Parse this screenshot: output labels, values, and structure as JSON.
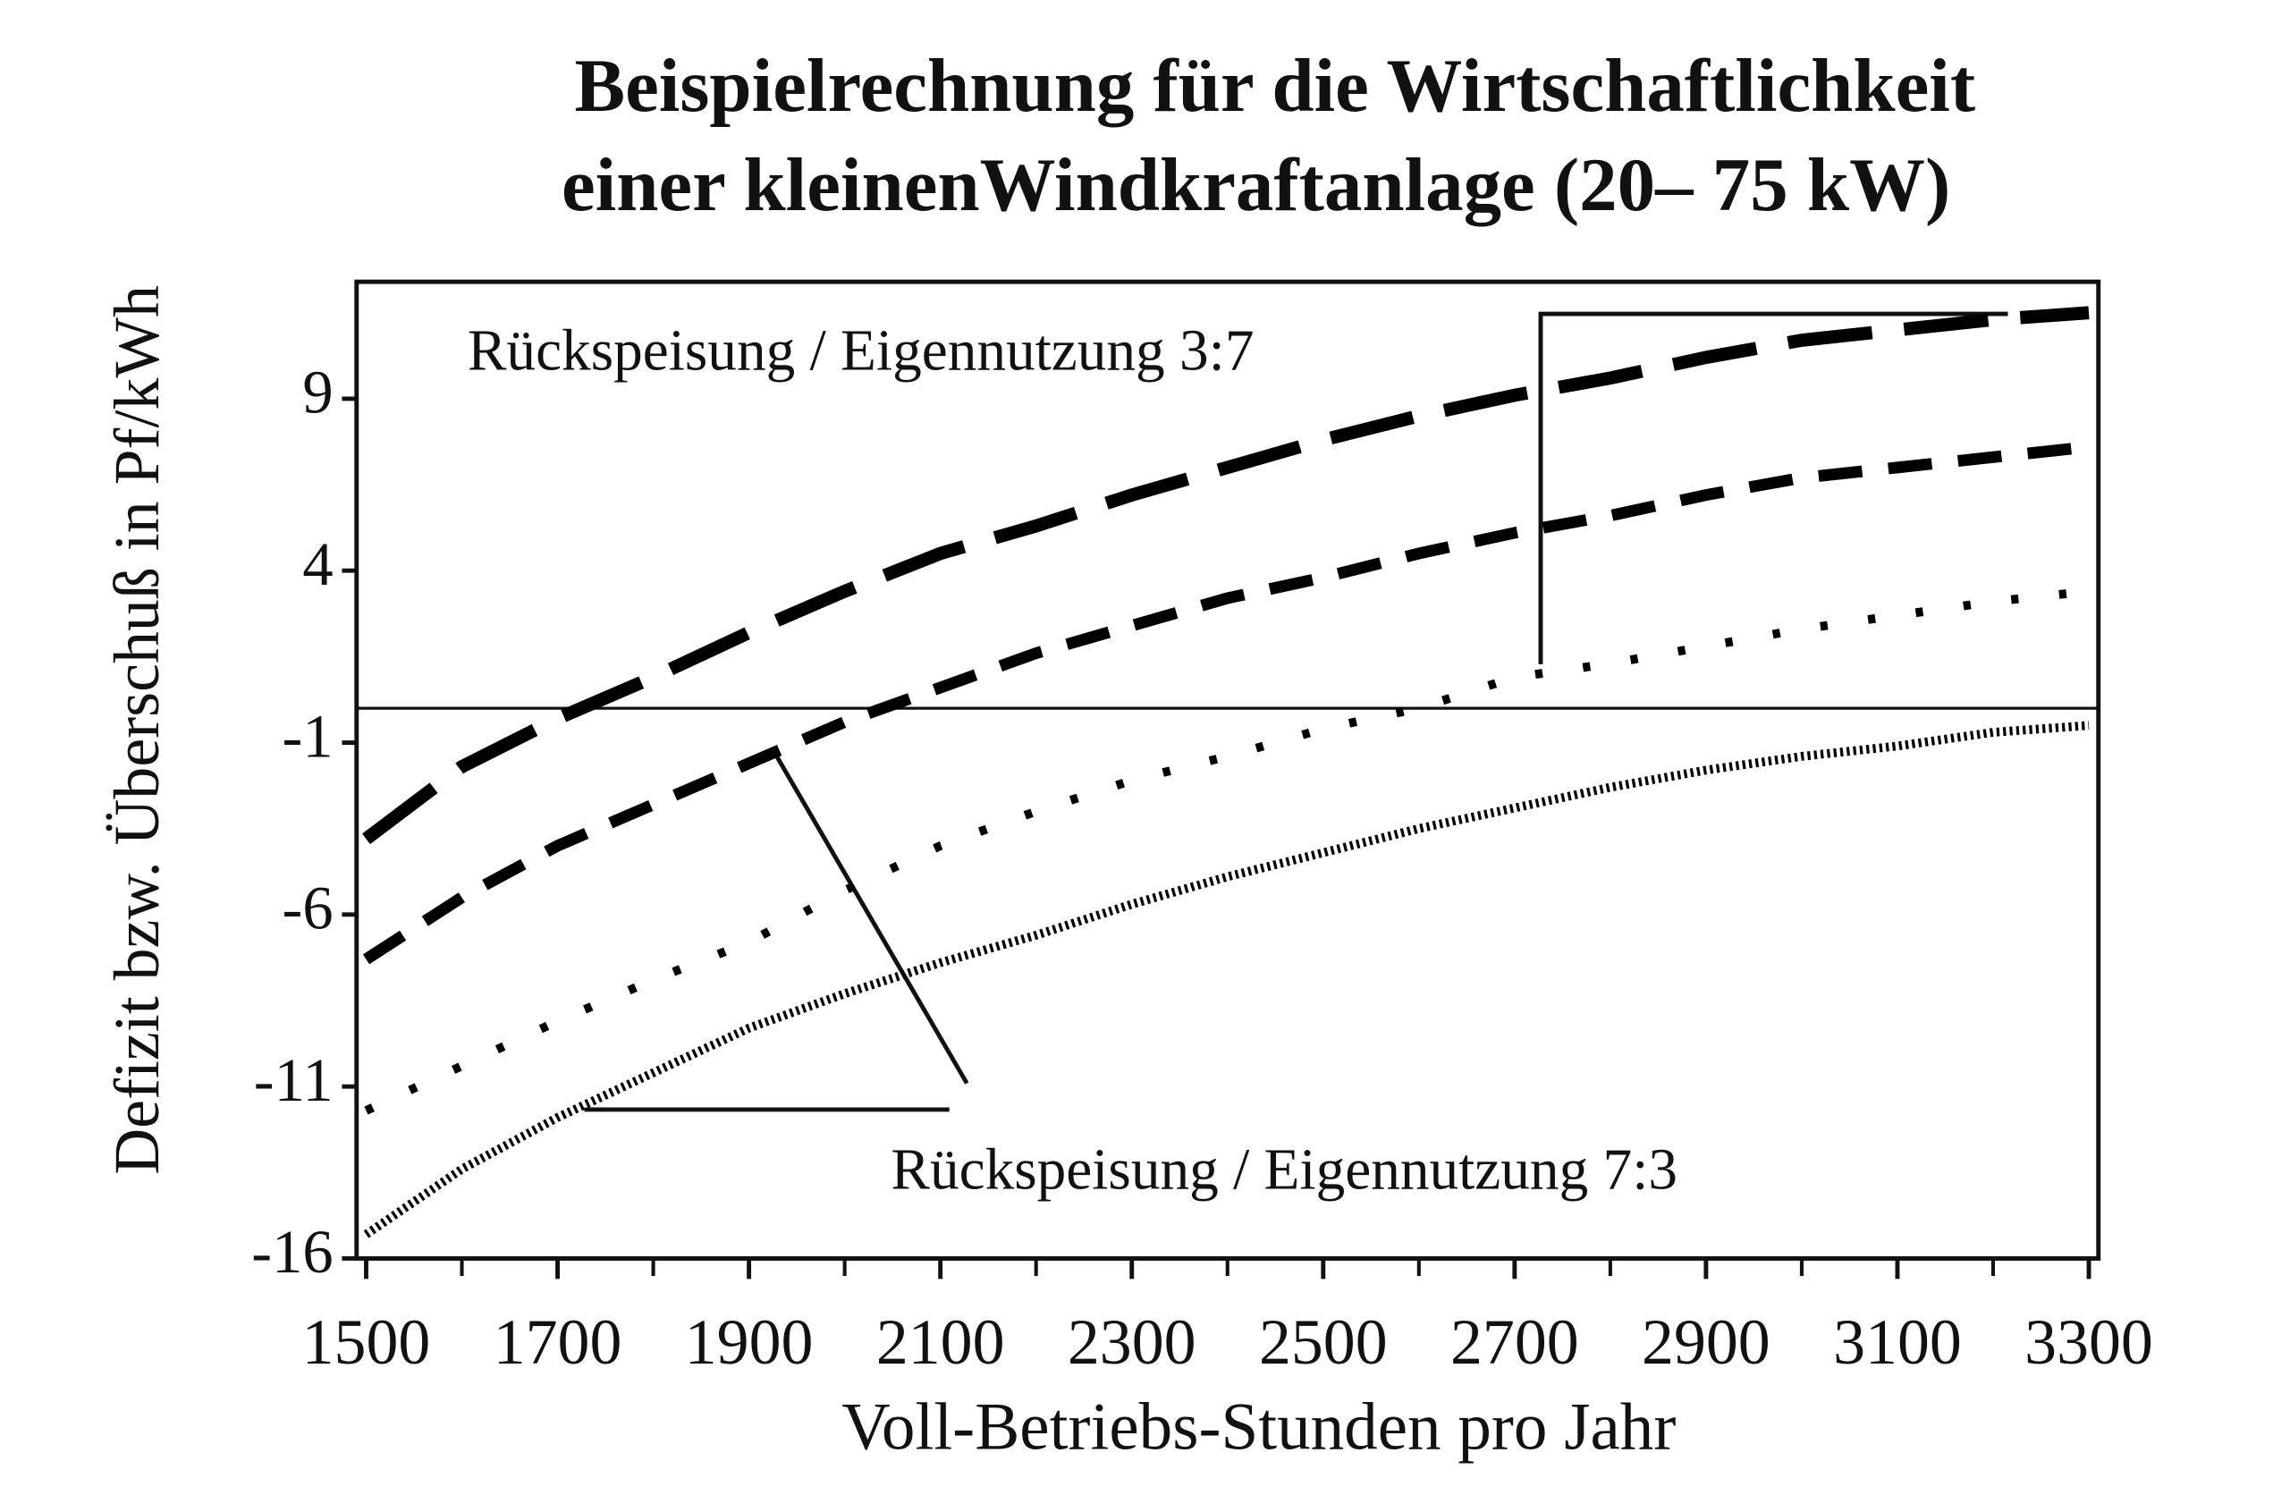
{
  "chart_data": {
    "type": "line",
    "title": [
      "Beispielrechnung für die Wirtschaftlichkeit",
      "einer kleinenWindkraftanlage (20– 75 kW)"
    ],
    "x_label": "Voll-Betriebs-Stunden pro Jahr",
    "y_label": "Defizit bzw. Überschuß in Pf/kWh",
    "annotations": [
      "Rückspeisung / Eigennutzung 3:7",
      "Rückspeisung / Eigennutzung 7:3"
    ],
    "x": [
      1500,
      1600,
      1700,
      1800,
      1900,
      2000,
      2100,
      2200,
      2300,
      2400,
      2500,
      2600,
      2700,
      2800,
      2900,
      3000,
      3100,
      3200,
      3300
    ],
    "series": [
      {
        "color": "#000000",
        "style": "long-dash",
        "values": [
          -3.8,
          -1.7,
          -0.3,
          0.9,
          2.2,
          3.4,
          4.5,
          5.3,
          6.2,
          7.0,
          7.8,
          8.5,
          9.1,
          9.6,
          10.2,
          10.7,
          11.0,
          11.3,
          11.5
        ]
      },
      {
        "color": "#000000",
        "style": "dash",
        "values": [
          -7.3,
          -5.5,
          -4.0,
          -2.8,
          -1.6,
          -0.4,
          0.6,
          1.6,
          2.4,
          3.2,
          3.8,
          4.5,
          5.1,
          5.6,
          6.2,
          6.7,
          7.0,
          7.3,
          7.6
        ]
      },
      {
        "color": "#000000",
        "style": "dot",
        "values": [
          -11.7,
          -10.4,
          -9.1,
          -7.9,
          -6.8,
          -5.3,
          -4.0,
          -3.0,
          -2.1,
          -1.4,
          -0.6,
          0.0,
          0.9,
          1.3,
          1.8,
          2.3,
          2.7,
          3.1,
          3.4
        ]
      },
      {
        "color": "#000000",
        "style": "fine",
        "values": [
          -15.3,
          -13.4,
          -11.9,
          -10.6,
          -9.3,
          -8.3,
          -7.4,
          -6.6,
          -5.7,
          -4.9,
          -4.2,
          -3.5,
          -2.9,
          -2.3,
          -1.8,
          -1.4,
          -1.1,
          -0.7,
          -0.5
        ]
      }
    ],
    "xlim": [
      1490,
      3310
    ],
    "xticks": [
      1500,
      1700,
      1900,
      2100,
      2300,
      2500,
      2700,
      2900,
      3100,
      3300
    ],
    "xminorticks": [
      1600,
      1800,
      2000,
      2200,
      2400,
      2600,
      2800,
      3000,
      3200
    ],
    "ylim": [
      -16,
      12.4
    ],
    "yticks": [
      -16,
      -11,
      -6,
      -1,
      4,
      9
    ],
    "reference_line": 0,
    "grid": false
  }
}
